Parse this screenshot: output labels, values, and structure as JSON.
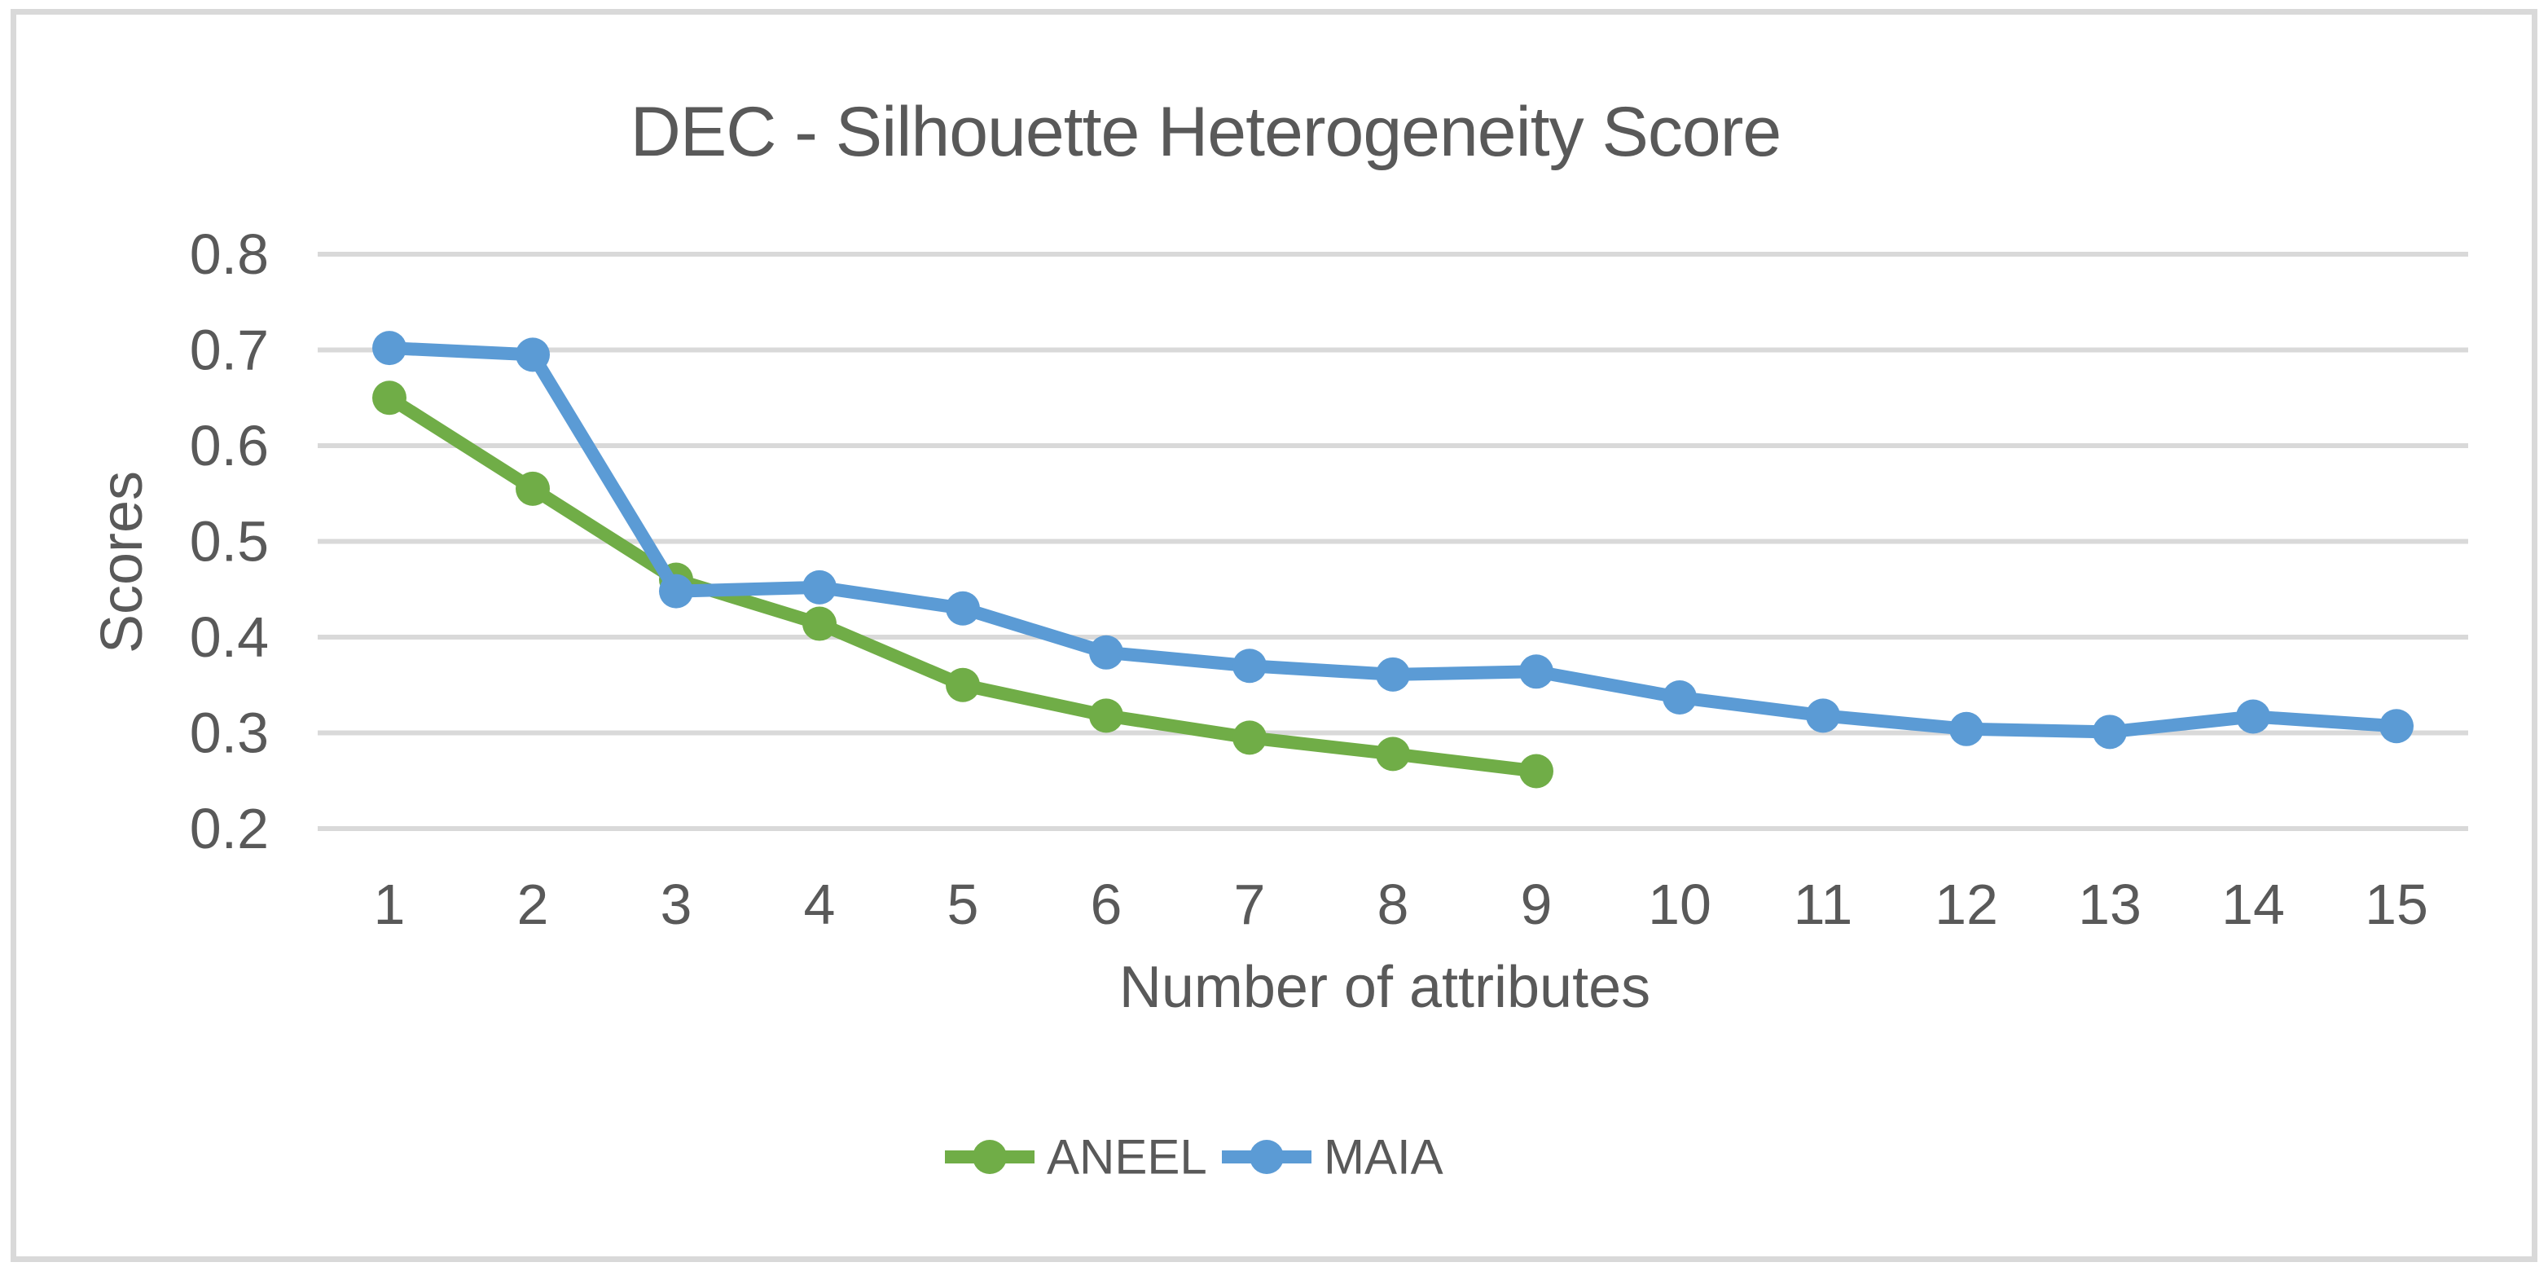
{
  "chart_data": {
    "type": "line",
    "title": "DEC - Silhouette Heterogeneity Score",
    "xlabel": "Number of attributes",
    "ylabel": "Scores",
    "categories": [
      1,
      2,
      3,
      4,
      5,
      6,
      7,
      8,
      9,
      10,
      11,
      12,
      13,
      14,
      15
    ],
    "series": [
      {
        "name": "ANEEL",
        "color": "#70AD47",
        "values": [
          0.65,
          0.555,
          0.46,
          0.414,
          0.35,
          0.318,
          0.295,
          0.278,
          0.26
        ]
      },
      {
        "name": "MAIA",
        "color": "#5B9BD5",
        "values": [
          0.702,
          0.695,
          0.448,
          0.452,
          0.43,
          0.384,
          0.37,
          0.361,
          0.364,
          0.337,
          0.318,
          0.304,
          0.301,
          0.317,
          0.307
        ]
      }
    ],
    "ylim": [
      0.2,
      0.8
    ],
    "ytick_labels": [
      "0.8",
      "0.7",
      "0.6",
      "0.5",
      "0.4",
      "0.3",
      "0.2"
    ],
    "grid": true,
    "legend_position": "bottom",
    "marker": "circle"
  },
  "style": {
    "text_color": "#595959",
    "gridline_color": "#D9D9D9",
    "border_color": "#D9D9D9",
    "background": "#FFFFFF"
  }
}
